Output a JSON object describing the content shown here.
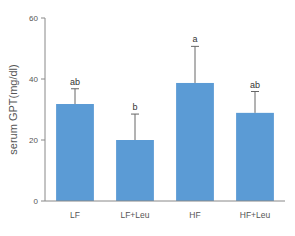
{
  "chart_data": {
    "type": "bar",
    "y_label": "serum GPT(mg/dl)",
    "categories": [
      "LF",
      "LF+Leu",
      "HF",
      "HF+Leu"
    ],
    "values": [
      31.8,
      20,
      38.7,
      28.9
    ],
    "errors": [
      5,
      8.5,
      12,
      7
    ],
    "annotations": [
      "ab",
      "b",
      "a",
      "ab"
    ],
    "color": "#5b9bd5",
    "ylim": [
      0,
      60
    ],
    "yticks": [
      0,
      20,
      40,
      60
    ],
    "grid": false
  }
}
